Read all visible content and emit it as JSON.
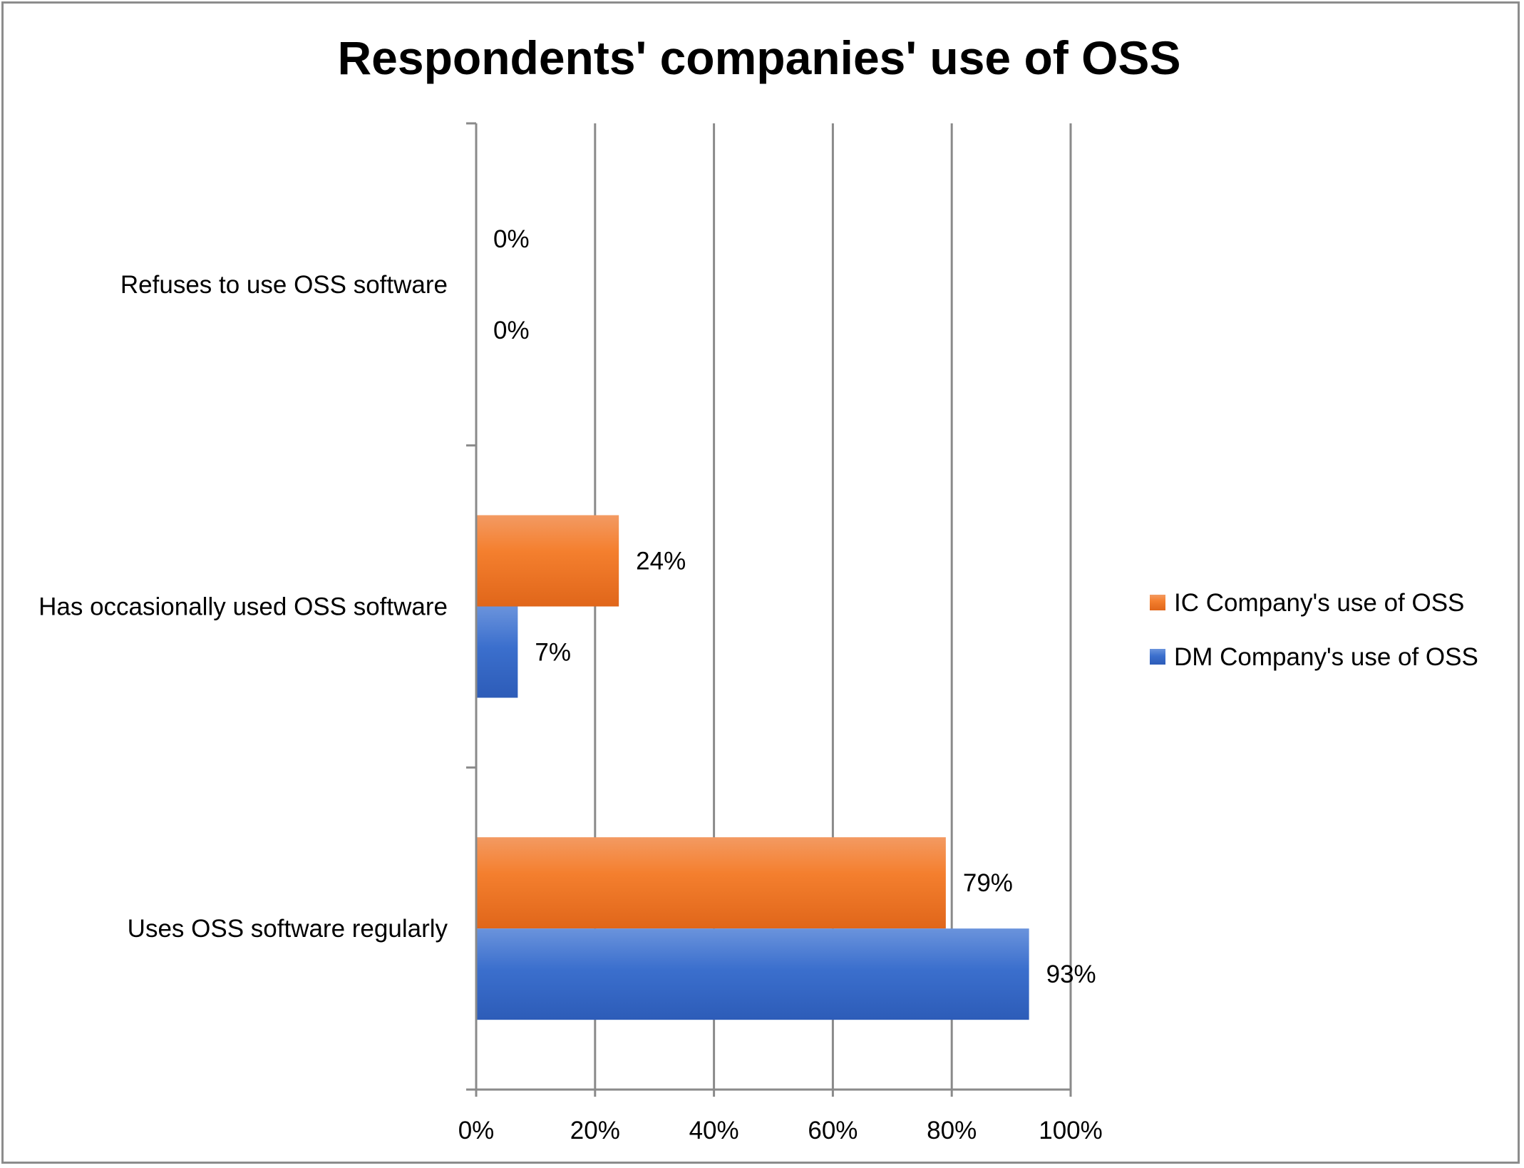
{
  "chart_data": {
    "type": "bar",
    "orientation": "horizontal",
    "title": "Respondents' companies' use of OSS",
    "categories": [
      "Refuses to use OSS software",
      "Has occasionally used OSS software",
      "Uses OSS software regularly"
    ],
    "series": [
      {
        "name": "IC Company's use of OSS",
        "values": [
          0,
          24,
          79
        ],
        "labels": [
          "0%",
          "24%",
          "79%"
        ],
        "color": "#f07a2a"
      },
      {
        "name": "DM Company's use of OSS",
        "values": [
          0,
          7,
          93
        ],
        "labels": [
          "0%",
          "7%",
          "93%"
        ],
        "color": "#3a6cc8"
      }
    ],
    "x_ticks": [
      "0%",
      "20%",
      "40%",
      "60%",
      "80%",
      "100%"
    ],
    "xlim": [
      0,
      100
    ],
    "grid": true,
    "legend_position": "right"
  }
}
